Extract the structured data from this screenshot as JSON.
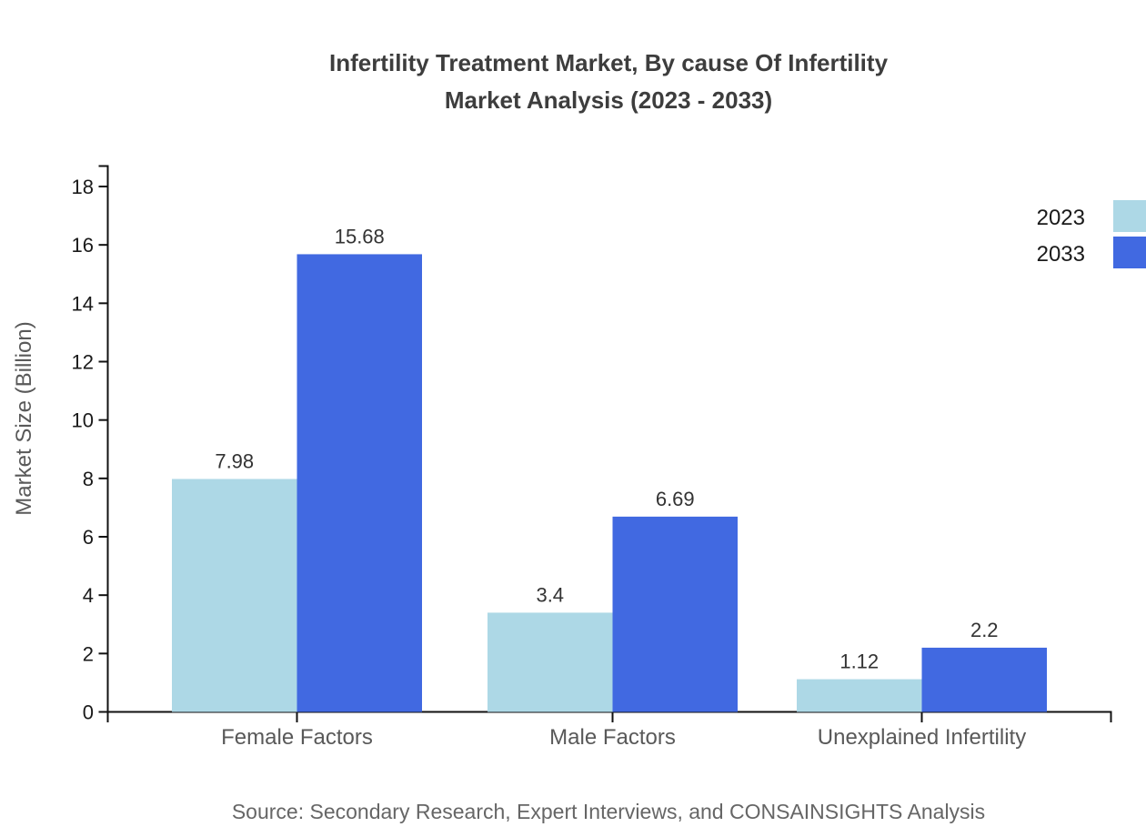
{
  "title": {
    "line1": "Infertility Treatment Market, By cause Of Infertility",
    "line2": "Market Analysis (2023 - 2033)"
  },
  "source_note": "Source: Secondary Research, Expert Interviews, and CONSAINSIGHTS Analysis",
  "chart_data": {
    "type": "bar",
    "title": "Infertility Treatment Market, By cause Of Infertility Market Analysis (2023 - 2033)",
    "categories": [
      "Female Factors",
      "Male Factors",
      "Unexplained Infertility"
    ],
    "series": [
      {
        "name": "2023",
        "color": "#ADD8E6",
        "values": [
          7.98,
          3.4,
          1.12
        ],
        "labels": [
          "7.98",
          "3.4",
          "1.12"
        ]
      },
      {
        "name": "2033",
        "color": "#4169E1",
        "values": [
          15.68,
          6.69,
          2.2
        ],
        "labels": [
          "15.68",
          "6.69",
          "2.2"
        ]
      }
    ],
    "xlabel": "",
    "ylabel": "Market Size (Billion)",
    "ylim": [
      0,
      18
    ],
    "yticks": [
      0,
      2,
      4,
      6,
      8,
      10,
      12,
      14,
      16,
      18
    ],
    "grid": false,
    "legend_position": "top-right",
    "colors": {
      "axis": "#111111",
      "title_text": "#3d3d3d",
      "tick_text": "#1a1a1a",
      "category_text": "#595959",
      "value_text": "#333333",
      "source_text": "#666666",
      "background": "#ffffff"
    }
  }
}
